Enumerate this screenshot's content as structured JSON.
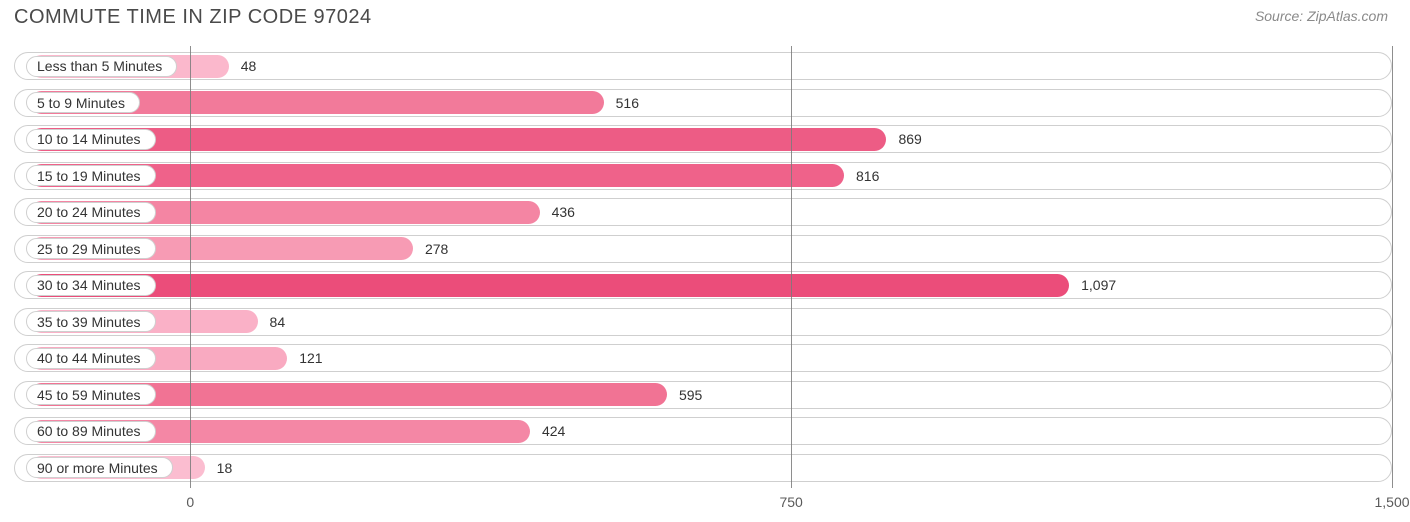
{
  "title": "COMMUTE TIME IN ZIP CODE 97024",
  "source": "Source: ZipAtlas.com",
  "chart": {
    "type": "bar",
    "orientation": "horizontal",
    "x_min": -220,
    "x_max": 1500,
    "x_ticks": [
      0,
      750,
      1500
    ],
    "x_tick_labels": [
      "0",
      "750",
      "1,500"
    ],
    "bar_origin": -200,
    "track_border_color": "#cfcfcf",
    "track_bg_color": "#ffffff",
    "gridline_color": "#7a7a7a",
    "background_color": "#ffffff",
    "title_color": "#4a4a4a",
    "title_fontsize": 20,
    "label_fontsize": 14,
    "value_fontsize": 14,
    "bars": [
      {
        "label": "Less than 5 Minutes",
        "value": 48,
        "display": "48",
        "color": "#fbb8cc"
      },
      {
        "label": "5 to 9 Minutes",
        "value": 516,
        "display": "516",
        "color": "#f27a9a"
      },
      {
        "label": "10 to 14 Minutes",
        "value": 869,
        "display": "869",
        "color": "#ed5c85"
      },
      {
        "label": "15 to 19 Minutes",
        "value": 816,
        "display": "816",
        "color": "#ef628a"
      },
      {
        "label": "20 to 24 Minutes",
        "value": 436,
        "display": "436",
        "color": "#f485a3"
      },
      {
        "label": "25 to 29 Minutes",
        "value": 278,
        "display": "278",
        "color": "#f79bb4"
      },
      {
        "label": "30 to 34 Minutes",
        "value": 1097,
        "display": "1,097",
        "color": "#eb4d7a"
      },
      {
        "label": "35 to 39 Minutes",
        "value": 84,
        "display": "84",
        "color": "#fab1c7"
      },
      {
        "label": "40 to 44 Minutes",
        "value": 121,
        "display": "121",
        "color": "#f9aac1"
      },
      {
        "label": "45 to 59 Minutes",
        "value": 595,
        "display": "595",
        "color": "#f17394"
      },
      {
        "label": "60 to 89 Minutes",
        "value": 424,
        "display": "424",
        "color": "#f487a5"
      },
      {
        "label": "90 or more Minutes",
        "value": 18,
        "display": "18",
        "color": "#fbbdd0"
      }
    ]
  }
}
